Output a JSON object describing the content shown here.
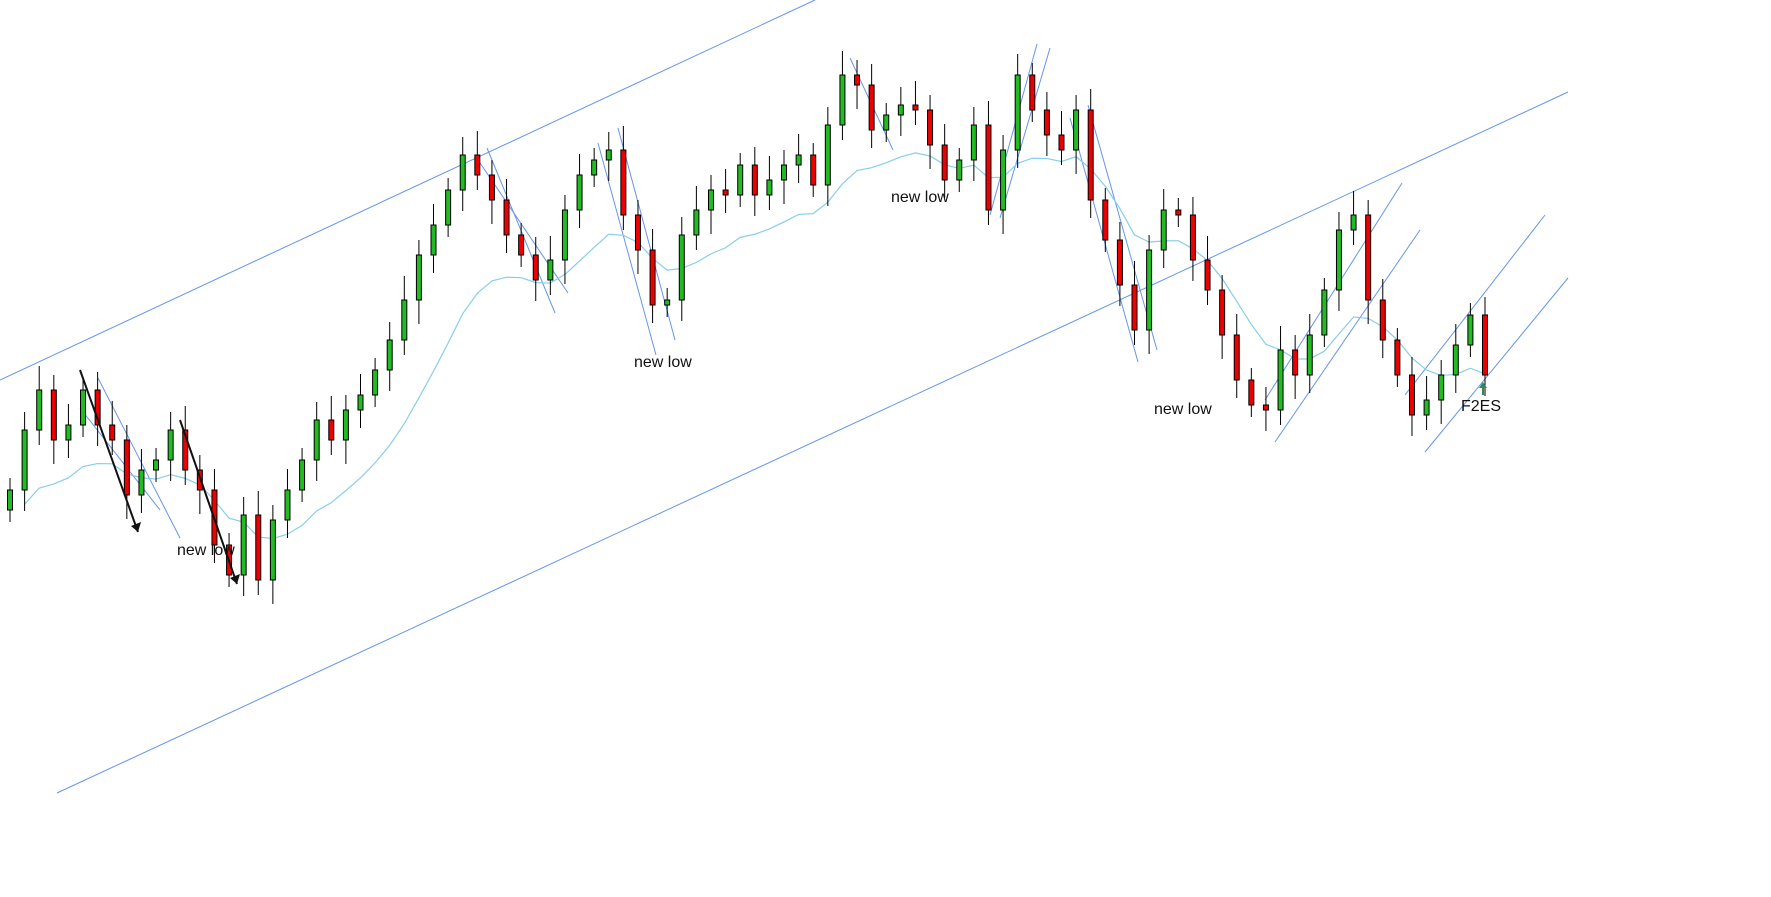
{
  "chart_data": {
    "type": "candlestick",
    "title": "",
    "xlabel": "",
    "ylabel": "",
    "grid": false,
    "close": [
      31,
      37,
      41,
      36,
      37.5,
      41,
      37.5,
      36,
      30.5,
      33,
      34,
      37,
      33,
      31,
      25.5,
      22.5,
      28.5,
      22,
      28,
      31,
      34,
      38,
      36,
      39,
      40.5,
      43,
      46,
      50,
      54.5,
      57.5,
      61,
      64.5,
      62.5,
      60,
      56.5,
      54.5,
      52,
      54,
      59,
      62.5,
      64,
      65,
      58.5,
      55,
      49.5,
      50,
      56.5,
      59,
      61,
      60.5,
      63.5,
      60.5,
      62,
      63.5,
      64.5,
      61.5,
      67.5,
      72.5,
      71.5,
      67,
      68.5,
      69.5,
      69,
      65.5,
      62,
      64,
      67.5,
      59,
      65,
      72.5,
      69,
      66.5,
      65,
      69,
      60,
      56,
      51.5,
      47,
      55,
      59,
      58.5,
      54,
      51,
      46.5,
      42,
      39.5,
      39,
      45,
      42.5,
      46.5,
      51,
      57,
      58.5,
      50,
      46,
      42.5,
      38.5,
      40,
      42.5,
      45.5,
      48.5,
      42.5
    ],
    "annotations": [
      "new low",
      "new low",
      "new low",
      "new low",
      "F2ES"
    ],
    "colors": {
      "up": "#22bb22",
      "down": "#ee0000",
      "moving_average": "#87ceeb",
      "trendline": "#6495ed",
      "arrow": "#111111",
      "signal_arrow": "#2e8b57"
    }
  }
}
